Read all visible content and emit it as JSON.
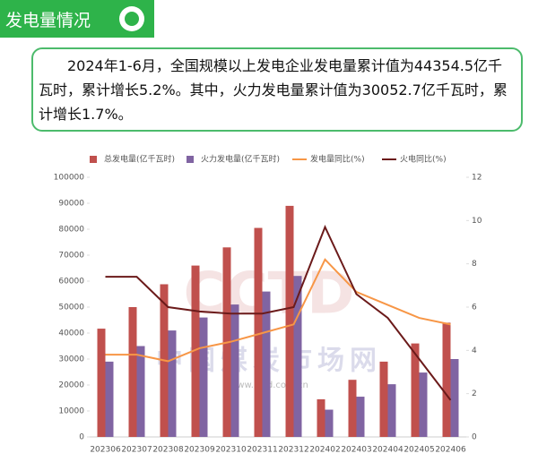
{
  "header": {
    "title": "发电量情况"
  },
  "summary": "2024年1-6月，全国规模以上发电企业发电量累计值为44354.5亿千瓦时，累计增长5.2%。其中，火力发电量累计值为30052.7亿千瓦时，累计增长1.7%。",
  "chart_data": {
    "type": "bar",
    "categories": [
      "202306",
      "202307",
      "202308",
      "202309",
      "202310",
      "202311",
      "202312",
      "202402",
      "202403",
      "202404",
      "202405",
      "202406"
    ],
    "series": [
      {
        "name": "总发电量(亿千瓦时)",
        "type": "bar",
        "color": "#c0504d",
        "values": [
          41700,
          50000,
          58800,
          66000,
          73000,
          80500,
          89000,
          14500,
          22000,
          29000,
          36000,
          44000
        ]
      },
      {
        "name": "火力发电量(亿千瓦时)",
        "type": "bar",
        "color": "#8064a2",
        "values": [
          29000,
          35000,
          41000,
          46000,
          51000,
          56000,
          62000,
          10500,
          15500,
          20300,
          24800,
          30000
        ]
      },
      {
        "name": "发电量同比(%)",
        "type": "line",
        "axis": "y2",
        "color": "#f79646",
        "values": [
          3.8,
          3.8,
          3.5,
          4.1,
          4.4,
          4.8,
          5.2,
          8.2,
          6.7,
          6.1,
          5.5,
          5.2
        ]
      },
      {
        "name": "火电同比(%)",
        "type": "line",
        "axis": "y2",
        "color": "#6b1a1a",
        "values": [
          7.4,
          7.4,
          6.0,
          5.8,
          5.7,
          5.7,
          6.0,
          9.7,
          6.6,
          5.5,
          3.6,
          1.7
        ]
      }
    ],
    "ylim": [
      0,
      100000
    ],
    "yticks": [
      0,
      10000,
      20000,
      30000,
      40000,
      50000,
      60000,
      70000,
      80000,
      90000,
      100000
    ],
    "y2lim": [
      0,
      12
    ],
    "y2ticks": [
      0,
      2,
      4,
      6,
      8,
      10,
      12
    ],
    "legend": "top",
    "watermark": [
      "CCTD",
      "中国煤炭市场网",
      "www.cctd.com.cn"
    ]
  }
}
